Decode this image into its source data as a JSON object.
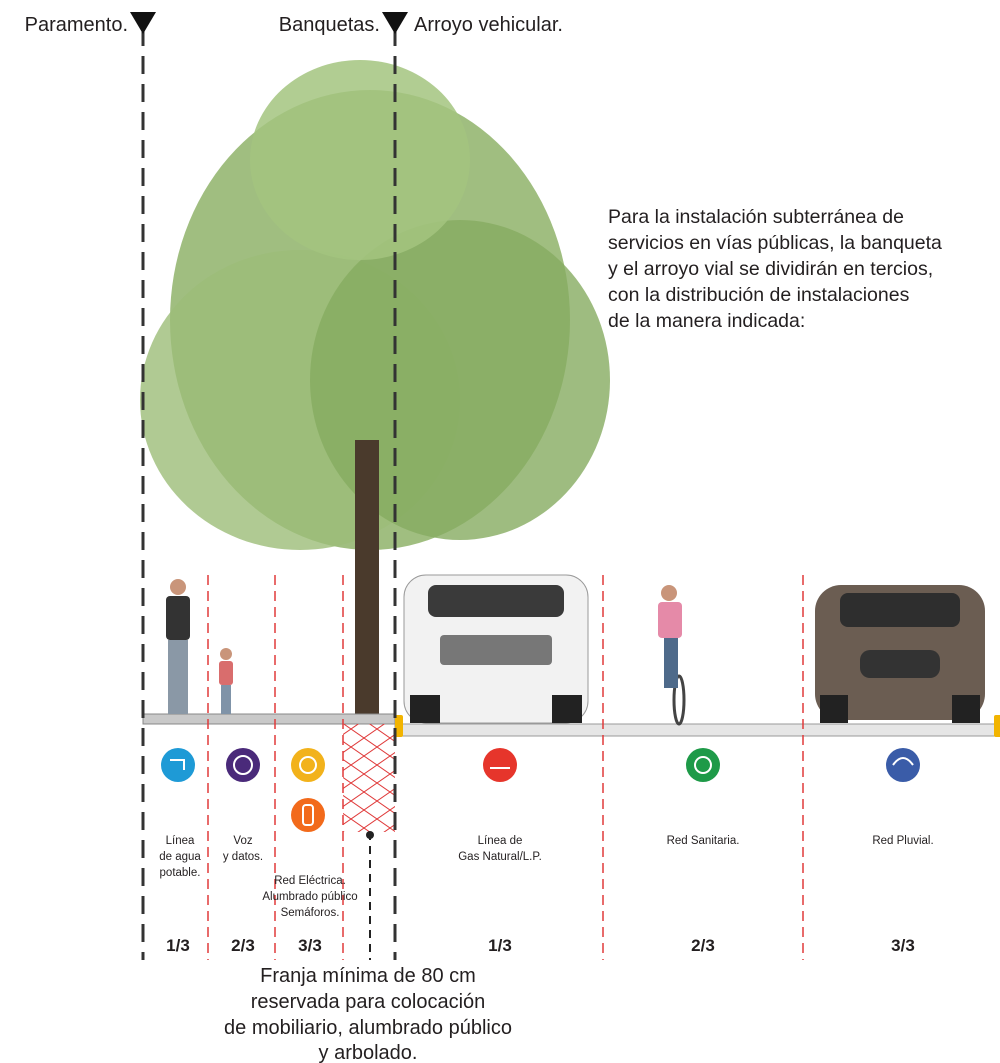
{
  "markers": [
    "Paramento.",
    "Banquetas.",
    "Arroyo vehicular."
  ],
  "description": [
    "Para la instalación subterránea de",
    "servicios en vías públicas, la banqueta",
    "y el arroyo vial se dividirán en tercios,",
    "con la distribución de instalaciones",
    "de la manera indicada:"
  ],
  "utilities": [
    {
      "label": [
        "Línea",
        "de agua",
        "potable."
      ]
    },
    {
      "label": [
        "Voz",
        "y datos."
      ]
    },
    {
      "label": [
        "Red Eléctrica.",
        "Alumbrado público",
        "Semáforos."
      ]
    },
    {
      "label": [
        "Línea de",
        "Gas Natural/L.P."
      ]
    },
    {
      "label": [
        "Red Sanitaria."
      ]
    },
    {
      "label": [
        "Red Pluvial."
      ]
    }
  ],
  "fractions": [
    "1/3",
    "2/3",
    "3/3",
    "1/3",
    "2/3",
    "3/3"
  ],
  "footnote": [
    "Franja mínima de 80 cm",
    "reservada para colocación",
    "de mobiliario, alumbrado público",
    "y arbolado."
  ]
}
